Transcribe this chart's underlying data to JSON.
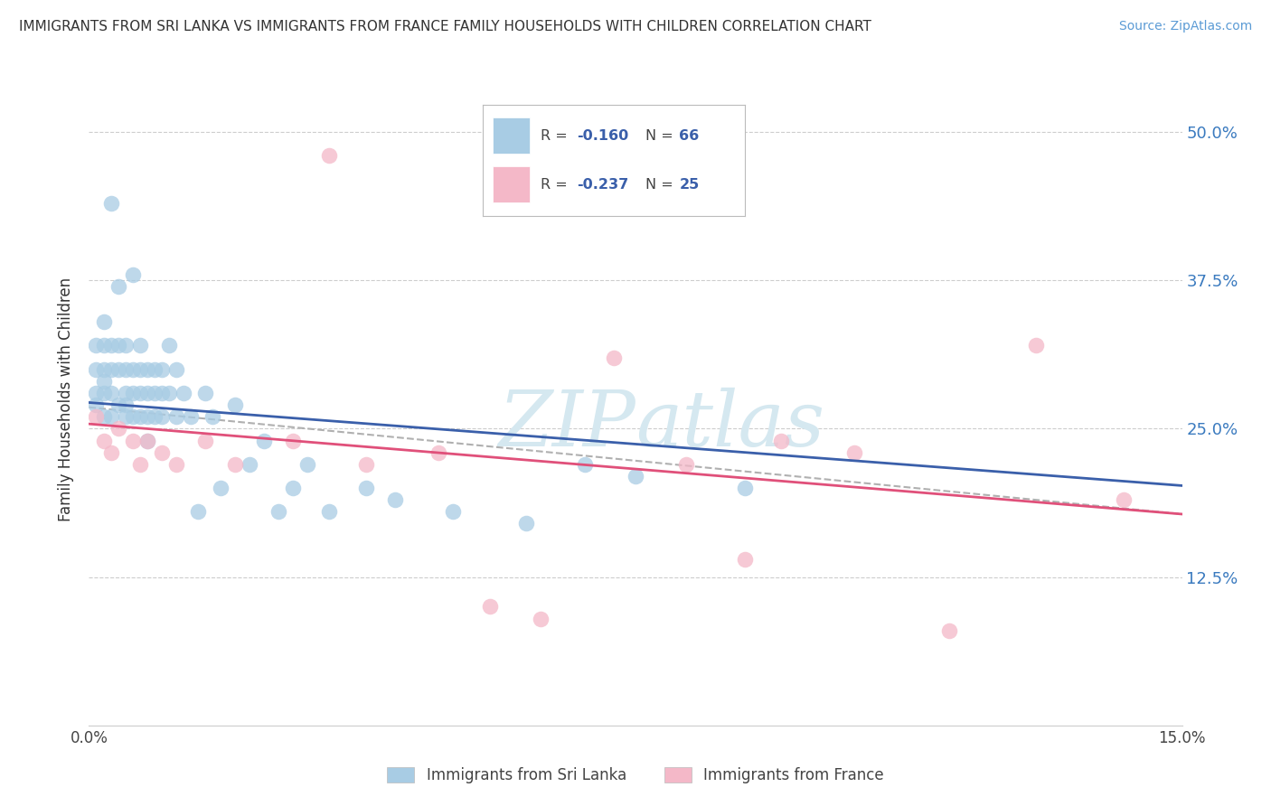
{
  "title": "IMMIGRANTS FROM SRI LANKA VS IMMIGRANTS FROM FRANCE FAMILY HOUSEHOLDS WITH CHILDREN CORRELATION CHART",
  "source": "Source: ZipAtlas.com",
  "ylabel": "Family Households with Children",
  "yticks": [
    "12.5%",
    "25.0%",
    "37.5%",
    "50.0%"
  ],
  "ytick_values": [
    0.125,
    0.25,
    0.375,
    0.5
  ],
  "legend_series1": "Immigrants from Sri Lanka",
  "legend_series2": "Immigrants from France",
  "color_blue": "#a8cce4",
  "color_pink": "#f4b8c8",
  "line_blue": "#3a5faa",
  "line_pink": "#e0507a",
  "line_gray": "#b0b0b0",
  "background": "#ffffff",
  "grid_color": "#c8c8c8",
  "watermark_color": "#d5e8f0",
  "sri_lanka_x": [
    0.001,
    0.001,
    0.001,
    0.001,
    0.002,
    0.002,
    0.002,
    0.002,
    0.002,
    0.002,
    0.003,
    0.003,
    0.003,
    0.003,
    0.003,
    0.004,
    0.004,
    0.004,
    0.004,
    0.005,
    0.005,
    0.005,
    0.005,
    0.005,
    0.006,
    0.006,
    0.006,
    0.006,
    0.007,
    0.007,
    0.007,
    0.007,
    0.008,
    0.008,
    0.008,
    0.008,
    0.009,
    0.009,
    0.009,
    0.01,
    0.01,
    0.01,
    0.011,
    0.011,
    0.012,
    0.012,
    0.013,
    0.014,
    0.015,
    0.016,
    0.017,
    0.018,
    0.02,
    0.022,
    0.024,
    0.026,
    0.028,
    0.03,
    0.033,
    0.038,
    0.042,
    0.05,
    0.06,
    0.068,
    0.075,
    0.09
  ],
  "sri_lanka_y": [
    0.28,
    0.3,
    0.32,
    0.27,
    0.26,
    0.28,
    0.3,
    0.32,
    0.34,
    0.29,
    0.28,
    0.3,
    0.26,
    0.32,
    0.44,
    0.3,
    0.32,
    0.27,
    0.37,
    0.28,
    0.3,
    0.26,
    0.32,
    0.27,
    0.28,
    0.3,
    0.26,
    0.38,
    0.28,
    0.3,
    0.26,
    0.32,
    0.28,
    0.3,
    0.26,
    0.24,
    0.28,
    0.3,
    0.26,
    0.28,
    0.26,
    0.3,
    0.28,
    0.32,
    0.26,
    0.3,
    0.28,
    0.26,
    0.18,
    0.28,
    0.26,
    0.2,
    0.27,
    0.22,
    0.24,
    0.18,
    0.2,
    0.22,
    0.18,
    0.2,
    0.19,
    0.18,
    0.17,
    0.22,
    0.21,
    0.2
  ],
  "france_x": [
    0.001,
    0.002,
    0.003,
    0.004,
    0.006,
    0.007,
    0.008,
    0.01,
    0.012,
    0.016,
    0.02,
    0.028,
    0.033,
    0.038,
    0.048,
    0.055,
    0.062,
    0.072,
    0.082,
    0.09,
    0.095,
    0.105,
    0.118,
    0.13,
    0.142
  ],
  "france_y": [
    0.26,
    0.24,
    0.23,
    0.25,
    0.24,
    0.22,
    0.24,
    0.23,
    0.22,
    0.24,
    0.22,
    0.24,
    0.48,
    0.22,
    0.23,
    0.1,
    0.09,
    0.31,
    0.22,
    0.14,
    0.24,
    0.23,
    0.08,
    0.32,
    0.19
  ],
  "blue_line_x0": 0.0,
  "blue_line_y0": 0.272,
  "blue_line_x1": 0.15,
  "blue_line_y1": 0.202,
  "pink_line_x0": 0.0,
  "pink_line_y0": 0.254,
  "pink_line_x1": 0.15,
  "pink_line_y1": 0.178,
  "gray_line_x0": 0.0,
  "gray_line_y0": 0.268,
  "gray_line_x1": 0.15,
  "gray_line_y1": 0.178,
  "xmin": 0.0,
  "xmax": 0.15,
  "ymin": 0.0,
  "ymax": 0.55
}
